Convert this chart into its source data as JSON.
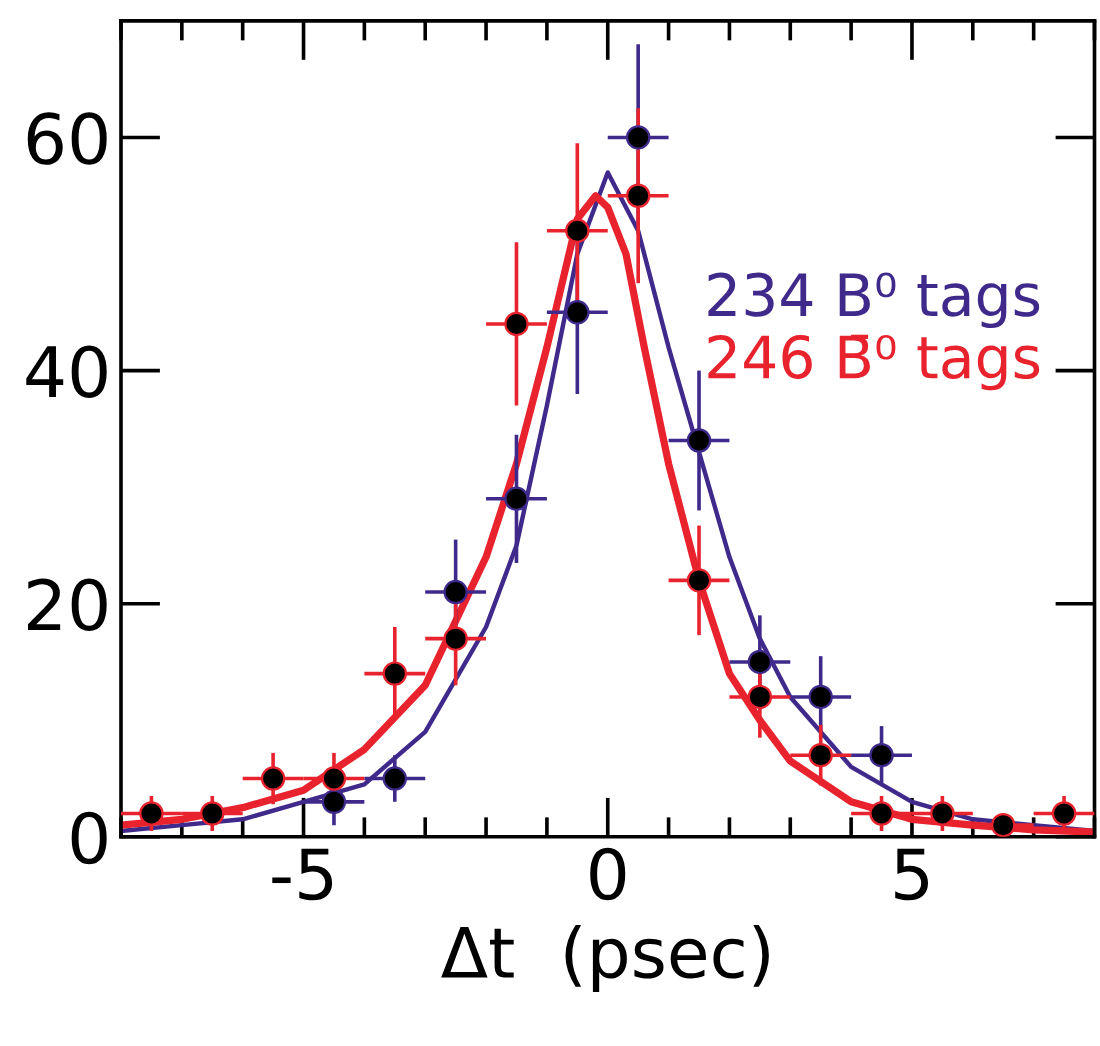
{
  "chart_data": {
    "type": "scatter",
    "xlabel": "Δt  (psec)",
    "xlim": [
      -8,
      8
    ],
    "ylim": [
      0,
      70
    ],
    "xticks": [
      {
        "value": -8,
        "label": null
      },
      {
        "value": -7,
        "label": null
      },
      {
        "value": -6,
        "label": null
      },
      {
        "value": -5,
        "label": "-5"
      },
      {
        "value": -4,
        "label": null
      },
      {
        "value": -3,
        "label": null
      },
      {
        "value": -2,
        "label": null
      },
      {
        "value": -1,
        "label": null
      },
      0,
      {
        "value": 1,
        "label": null
      },
      {
        "value": 2,
        "label": null
      },
      {
        "value": 3,
        "label": null
      },
      {
        "value": 4,
        "label": null
      },
      5,
      {
        "value": 6,
        "label": null
      },
      {
        "value": 7,
        "label": null
      },
      {
        "value": 8,
        "label": null
      }
    ],
    "yticks": [
      0,
      20,
      40,
      60
    ],
    "grid": false,
    "legend": "right",
    "marker": "circle",
    "series": [
      {
        "color": "#3f2a8c",
        "x": [
          -4.5,
          -3.5,
          -2.5,
          -1.5,
          -0.5,
          0.5,
          1.5,
          2.5,
          3.5,
          4.5
        ],
        "values": [
          3,
          5,
          21,
          29,
          45,
          60,
          34,
          15,
          12,
          7
        ],
        "errors": [
          2,
          2,
          4.5,
          5.5,
          7,
          8,
          6,
          4,
          3.5,
          2.5
        ],
        "xerrors": [
          0.5,
          0.5,
          0.5,
          0.5,
          0.5,
          0.5,
          0.5,
          0.5,
          0.5,
          0.5
        ]
      },
      {
        "color": "#e8232e",
        "x": [
          -7.5,
          -6.5,
          -5.5,
          -4.5,
          -3.5,
          -2.5,
          -1.5,
          -0.5,
          0.5,
          1.5,
          2.5,
          3.5,
          4.5,
          5.5,
          6.5,
          7.5
        ],
        "values": [
          2,
          2,
          5,
          5,
          14,
          17,
          44,
          52,
          55,
          22,
          12,
          7,
          2,
          2,
          1,
          2
        ],
        "errors": [
          1.5,
          1.5,
          2.2,
          2.2,
          4,
          4,
          7,
          7.5,
          7.5,
          4.7,
          3.5,
          2.6,
          1.5,
          1.5,
          0.9,
          1.5
        ],
        "xerrors": [
          0.5,
          0.5,
          0.5,
          0.5,
          0.5,
          0.5,
          0.5,
          0.5,
          0.5,
          0.5,
          0.5,
          0.5,
          0.5,
          0.5,
          0.5,
          0.5
        ]
      },
      {
        "type": "line",
        "marker": "none",
        "name": "234 B⁰ tags",
        "color": "#3f2a8c",
        "x": [
          -8,
          -7,
          -6,
          -5,
          -4,
          -3,
          -2,
          -1.5,
          -1,
          -0.5,
          0,
          0.5,
          1,
          1.5,
          2,
          2.5,
          3,
          4,
          5,
          6,
          7,
          8
        ],
        "values": [
          0.5,
          1,
          1.5,
          3,
          4.5,
          9,
          18,
          25,
          37,
          50,
          57,
          52,
          42,
          33,
          24,
          17,
          12,
          6,
          3,
          1.5,
          1,
          0.5
        ]
      },
      {
        "type": "line",
        "marker": "none",
        "name": "246 B̄⁰ tags",
        "color": "#e8232e",
        "x": [
          -8,
          -7,
          -6,
          -5,
          -4,
          -3,
          -2,
          -1.5,
          -1,
          -0.5,
          -0.2,
          0,
          0.3,
          0.6,
          1,
          1.5,
          2,
          2.5,
          3,
          4,
          5,
          6,
          7,
          8
        ],
        "values": [
          1,
          1.5,
          2.5,
          4,
          7.5,
          13,
          24,
          32,
          42,
          53,
          55,
          54,
          50,
          42,
          32,
          22,
          14,
          10,
          6.5,
          3,
          1.5,
          1,
          0.6,
          0.4
        ]
      }
    ]
  }
}
